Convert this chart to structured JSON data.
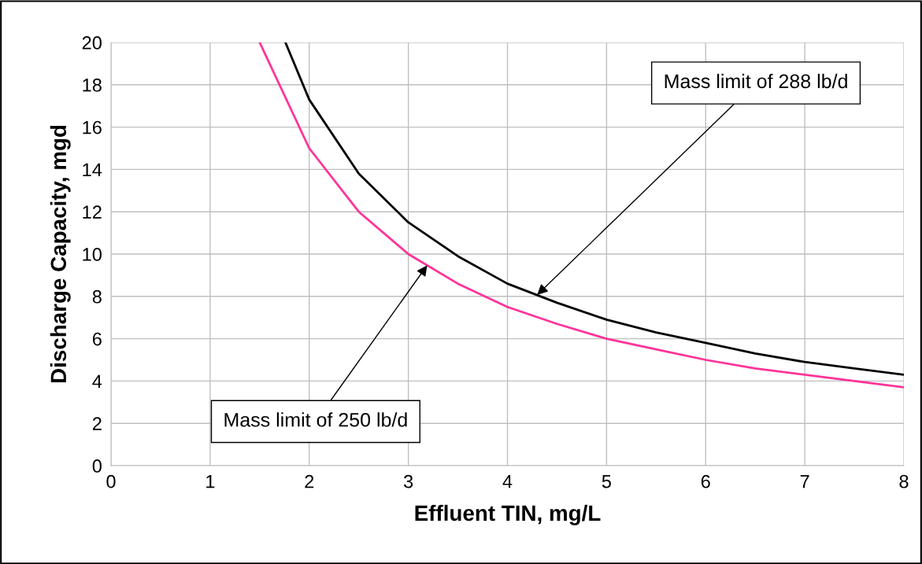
{
  "chart_data": {
    "type": "line",
    "xlabel": "Effluent TIN, mg/L",
    "ylabel": "Discharge Capacity, mgd",
    "xlim": [
      0,
      8
    ],
    "xticks": [
      0,
      1,
      2,
      3,
      4,
      5,
      6,
      7,
      8
    ],
    "ylim": [
      0,
      20
    ],
    "yticks": [
      0,
      2,
      4,
      6,
      8,
      10,
      12,
      14,
      16,
      18,
      20
    ],
    "grid": true,
    "marker": "none",
    "line_style": "solid",
    "series": [
      {
        "color": "#000000",
        "x": [
          1.76,
          2,
          2.5,
          3,
          3.5,
          4,
          4.5,
          5,
          5.5,
          6,
          6.5,
          7,
          7.5,
          8
        ],
        "values": [
          20.0,
          17.3,
          13.8,
          11.5,
          9.9,
          8.6,
          7.7,
          6.9,
          6.3,
          5.8,
          5.3,
          4.9,
          4.6,
          4.3
        ]
      },
      {
        "color": "#ff3399",
        "x": [
          1.5,
          2,
          2.5,
          3,
          3.5,
          4,
          4.5,
          5,
          5.5,
          6,
          6.5,
          7,
          7.5,
          8
        ],
        "values": [
          20.0,
          15.0,
          12.0,
          10.0,
          8.6,
          7.5,
          6.7,
          6.0,
          5.5,
          5.0,
          4.6,
          4.3,
          4.0,
          3.7
        ]
      }
    ],
    "annotations": [
      {
        "text": "Mass limit of 288 lb/d",
        "x": 4.3,
        "y": 8.07
      },
      {
        "text": "Mass limit of 250 lb/d",
        "x": 3.19,
        "y": 9.47
      }
    ]
  }
}
